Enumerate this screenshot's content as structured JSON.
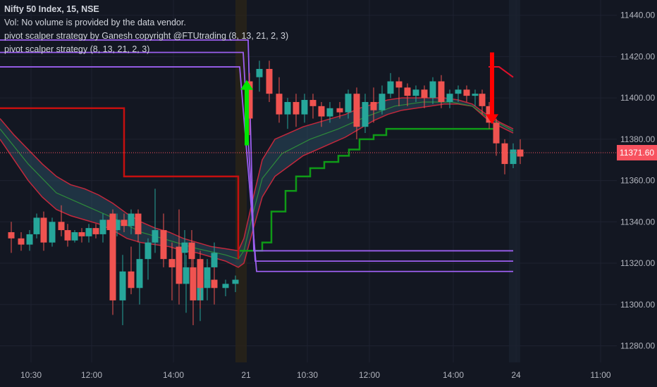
{
  "legend": {
    "title": "Nifty 50 Index, 15, NSE",
    "vol": "Vol: No volume is provided by the data vendor.",
    "strategy_a": "pivot scalper strategy by Ganesh copyright @FTUtrading (8, 13, 21, 2, 3)",
    "strategy_b": "pivot scalper strategy (8, 13, 21, 2, 3)"
  },
  "last_price": "11371.60",
  "colors": {
    "bg": "#131722",
    "up": "#26a69a",
    "down": "#ef5350",
    "grid": "#1e2230",
    "purple": "#9c5ff0",
    "band": "#2a4a5e",
    "signal_up": "#00e600",
    "signal_down": "#ff0000"
  },
  "chart_data": {
    "type": "candlestick",
    "ylim": [
      11272,
      11446
    ],
    "y_ticks": [
      11280,
      11300,
      11320,
      11340,
      11360,
      11380,
      11400,
      11420,
      11440
    ],
    "x_ticks": [
      "10:30",
      "12:00",
      "14:00",
      "21",
      "10:30",
      "12:00",
      "14:00",
      "24",
      "11:00"
    ],
    "candles": [
      [
        11335,
        11340,
        11325,
        11332
      ],
      [
        11332,
        11335,
        11326,
        11329
      ],
      [
        11329,
        11336,
        11326,
        11334
      ],
      [
        11334,
        11344,
        11332,
        11342
      ],
      [
        11342,
        11345,
        11326,
        11330
      ],
      [
        11330,
        11342,
        11328,
        11340
      ],
      [
        11340,
        11348,
        11333,
        11336
      ],
      [
        11336,
        11339,
        11328,
        11331
      ],
      [
        11331,
        11336,
        11330,
        11335
      ],
      [
        11335,
        11337,
        11330,
        11333
      ],
      [
        11333,
        11339,
        11330,
        11337
      ],
      [
        11337,
        11339,
        11332,
        11334
      ],
      [
        11334,
        11344,
        11330,
        11341
      ],
      [
        11341,
        11343,
        11334,
        11336
      ],
      [
        11336,
        11344,
        11333,
        11341
      ],
      [
        11341,
        11344,
        11335,
        11338
      ],
      [
        11338,
        11346,
        11334,
        11344
      ],
      [
        11344,
        11346,
        11330,
        11334
      ],
      [
        11344,
        11346,
        11295,
        11302
      ],
      [
        11302,
        11324,
        11290,
        11316
      ],
      [
        11316,
        11328,
        11305,
        11308
      ],
      [
        11308,
        11330,
        11300,
        11322
      ],
      [
        11322,
        11332,
        11312,
        11330
      ],
      [
        11330,
        11356,
        11325,
        11336
      ],
      [
        11336,
        11344,
        11318,
        11322
      ],
      [
        11322,
        11330,
        11302,
        11318
      ],
      [
        11328,
        11346,
        11300,
        11310
      ],
      [
        11310,
        11324,
        11296,
        11318
      ],
      [
        11318,
        11325,
        11290,
        11302
      ],
      [
        11302,
        11318,
        11292,
        11312
      ],
      [
        11312,
        11322,
        11305,
        11318
      ],
      [
        11318,
        11330,
        11312,
        11325
      ],
      [
        11325,
        11336,
        11318,
        11330
      ],
      [
        11330,
        11336,
        11310,
        11322
      ],
      [
        11322,
        11326,
        11298,
        11308
      ],
      [
        11308,
        11316,
        11302,
        11312
      ],
      [
        11312,
        11318,
        11300,
        11308
      ],
      [
        11308,
        11312,
        11304,
        11310
      ],
      [
        11310,
        11314,
        11306,
        11312
      ],
      [
        11408,
        11412,
        11382,
        11390
      ],
      [
        11410,
        11418,
        11403,
        11414
      ],
      [
        11414,
        11418,
        11398,
        11402
      ],
      [
        11402,
        11410,
        11388,
        11392
      ],
      [
        11392,
        11400,
        11385,
        11398
      ],
      [
        11398,
        11402,
        11386,
        11392
      ],
      [
        11392,
        11402,
        11388,
        11399
      ],
      [
        11399,
        11402,
        11390,
        11396
      ],
      [
        11396,
        11398,
        11386,
        11391
      ],
      [
        11391,
        11398,
        11388,
        11395
      ],
      [
        11395,
        11398,
        11390,
        11393
      ],
      [
        11393,
        11404,
        11390,
        11402
      ],
      [
        11402,
        11405,
        11380,
        11386
      ],
      [
        11386,
        11402,
        11383,
        11398
      ],
      [
        11398,
        11405,
        11388,
        11394
      ],
      [
        11394,
        11406,
        11392,
        11402
      ],
      [
        11402,
        11412,
        11400,
        11408
      ],
      [
        11408,
        11410,
        11396,
        11405
      ],
      [
        11405,
        11407,
        11396,
        11401
      ],
      [
        11401,
        11406,
        11398,
        11404
      ],
      [
        11404,
        11406,
        11395,
        11400
      ],
      [
        11400,
        11410,
        11397,
        11408
      ],
      [
        11408,
        11411,
        11395,
        11398
      ],
      [
        11398,
        11404,
        11395,
        11402
      ],
      [
        11402,
        11406,
        11398,
        11404
      ],
      [
        11404,
        11406,
        11398,
        11401
      ],
      [
        11401,
        11404,
        11396,
        11402
      ],
      [
        11402,
        11404,
        11392,
        11396
      ],
      [
        11396,
        11398,
        11385,
        11388
      ],
      [
        11388,
        11390,
        11372,
        11378
      ],
      [
        11378,
        11380,
        11363,
        11368
      ],
      [
        11368,
        11378,
        11366,
        11375
      ],
      [
        11375,
        11380,
        11368,
        11371.6
      ]
    ],
    "x_positions": [
      16,
      30,
      42,
      52,
      62,
      74,
      87,
      96,
      106,
      116,
      126,
      136,
      146,
      156,
      166,
      176,
      186,
      196,
      160,
      174,
      186,
      198,
      210,
      220,
      232,
      244,
      254,
      264,
      274,
      284,
      294,
      304,
      262,
      272,
      284,
      294,
      304,
      320,
      334,
      354,
      368,
      382,
      396,
      408,
      420,
      432,
      444,
      456,
      468,
      482,
      494,
      506,
      518,
      530,
      542,
      554,
      566,
      578,
      590,
      602,
      614,
      626,
      638,
      650,
      662,
      674,
      684,
      694,
      704,
      716,
      728,
      738
    ],
    "band_upper": [
      [
        0,
        11390
      ],
      [
        20,
        11382
      ],
      [
        40,
        11375
      ],
      [
        60,
        11368
      ],
      [
        80,
        11362
      ],
      [
        100,
        11358
      ],
      [
        120,
        11356
      ],
      [
        140,
        11353
      ],
      [
        160,
        11349
      ],
      [
        180,
        11344
      ],
      [
        200,
        11340
      ],
      [
        220,
        11337
      ],
      [
        240,
        11335
      ],
      [
        260,
        11332
      ],
      [
        280,
        11330
      ],
      [
        300,
        11328
      ],
      [
        320,
        11327
      ],
      [
        338,
        11326
      ],
      [
        346,
        11332
      ],
      [
        358,
        11350
      ],
      [
        372,
        11370
      ],
      [
        390,
        11380
      ],
      [
        410,
        11383
      ],
      [
        430,
        11386
      ],
      [
        450,
        11388
      ],
      [
        470,
        11390
      ],
      [
        490,
        11392
      ],
      [
        510,
        11395
      ],
      [
        530,
        11397
      ],
      [
        550,
        11399
      ],
      [
        570,
        11400
      ],
      [
        590,
        11400
      ],
      [
        610,
        11400
      ],
      [
        630,
        11400
      ],
      [
        650,
        11399
      ],
      [
        670,
        11397
      ],
      [
        690,
        11392
      ],
      [
        710,
        11388
      ],
      [
        728,
        11385
      ]
    ],
    "band_lower": [
      [
        0,
        11380
      ],
      [
        20,
        11370
      ],
      [
        40,
        11360
      ],
      [
        60,
        11352
      ],
      [
        80,
        11346
      ],
      [
        100,
        11343
      ],
      [
        120,
        11341
      ],
      [
        140,
        11339
      ],
      [
        160,
        11336
      ],
      [
        180,
        11332
      ],
      [
        200,
        11330
      ],
      [
        220,
        11329
      ],
      [
        240,
        11328
      ],
      [
        260,
        11326
      ],
      [
        280,
        11325
      ],
      [
        300,
        11323
      ],
      [
        320,
        11321
      ],
      [
        338,
        11318
      ],
      [
        346,
        11320
      ],
      [
        358,
        11335
      ],
      [
        372,
        11352
      ],
      [
        390,
        11362
      ],
      [
        410,
        11367
      ],
      [
        430,
        11372
      ],
      [
        450,
        11375
      ],
      [
        470,
        11378
      ],
      [
        490,
        11381
      ],
      [
        510,
        11385
      ],
      [
        530,
        11389
      ],
      [
        550,
        11392
      ],
      [
        570,
        11394
      ],
      [
        590,
        11395
      ],
      [
        610,
        11396
      ],
      [
        630,
        11397
      ],
      [
        650,
        11397
      ],
      [
        670,
        11396
      ],
      [
        690,
        11390
      ],
      [
        710,
        11386
      ],
      [
        728,
        11383
      ]
    ],
    "center_line": [
      [
        0,
        11385
      ],
      [
        40,
        11368
      ],
      [
        80,
        11354
      ],
      [
        120,
        11348
      ],
      [
        160,
        11342
      ],
      [
        200,
        11335
      ],
      [
        240,
        11331
      ],
      [
        280,
        11327
      ],
      [
        320,
        11324
      ],
      [
        338,
        11322
      ],
      [
        346,
        11326
      ],
      [
        358,
        11343
      ],
      [
        372,
        11361
      ],
      [
        400,
        11373
      ],
      [
        440,
        11380
      ],
      [
        480,
        11385
      ],
      [
        520,
        11391
      ],
      [
        560,
        11396
      ],
      [
        600,
        11398
      ],
      [
        640,
        11398
      ],
      [
        670,
        11396
      ],
      [
        690,
        11391
      ],
      [
        728,
        11384
      ]
    ],
    "resistance_step": [
      [
        0,
        11395
      ],
      [
        158,
        11395
      ],
      [
        176,
        11362
      ],
      [
        320,
        11362
      ],
      [
        338,
        11322
      ]
    ],
    "support_step": [
      [
        340,
        11326
      ],
      [
        362,
        11326
      ],
      [
        372,
        11330
      ],
      [
        385,
        11345
      ],
      [
        405,
        11355
      ],
      [
        420,
        11362
      ],
      [
        440,
        11366
      ],
      [
        460,
        11369
      ],
      [
        480,
        11372
      ],
      [
        495,
        11375
      ],
      [
        510,
        11380
      ],
      [
        530,
        11382
      ],
      [
        548,
        11385
      ],
      [
        650,
        11385
      ],
      [
        690,
        11385
      ],
      [
        705,
        11384
      ]
    ],
    "resistance_step2": [
      [
        693,
        11415
      ],
      [
        708,
        11415
      ],
      [
        728,
        11410
      ]
    ],
    "purple_lines": [
      {
        "x0": 0,
        "x1": 352,
        "y": 11428,
        "drop_to": 11326,
        "drop_x": 360,
        "x_end": 728,
        "y_end": 11326
      },
      {
        "x0": 0,
        "x1": 345,
        "y": 11422,
        "drop_to": 11321,
        "drop_x": 362,
        "x_end": 728,
        "y_end": 11321
      },
      {
        "x0": 0,
        "x1": 340,
        "y": 11415,
        "drop_to": 11316,
        "drop_x": 364,
        "x_end": 728,
        "y_end": 11316
      }
    ],
    "signals": [
      {
        "type": "buy",
        "x": 350,
        "y_from": 11377,
        "y_to": 11408
      },
      {
        "type": "sell",
        "x": 698,
        "y_from": 11422,
        "y_to": 11388
      }
    ],
    "session_markers": [
      342,
      730
    ]
  }
}
